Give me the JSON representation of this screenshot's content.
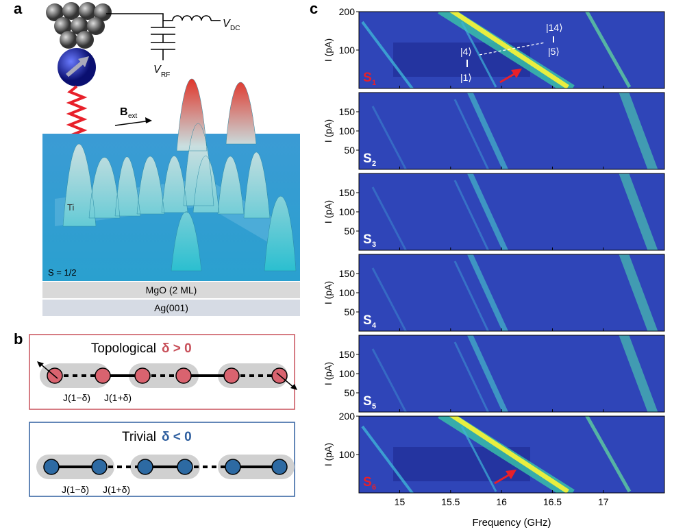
{
  "panel_a": {
    "label": "a",
    "circuit": {
      "vdc": "V",
      "vdc_sub": "DC",
      "vrf": "V",
      "vrf_sub": "RF"
    },
    "field": {
      "symbol": "B",
      "sub": "ext"
    },
    "atom": "Ti",
    "spin": "S = 1/2",
    "layers": [
      "MgO (2 ML)",
      "Ag(001)"
    ]
  },
  "panel_b": {
    "label": "b",
    "topological": {
      "title": "Topological",
      "condition": "δ > 0",
      "couplings": [
        "J(1−δ)",
        "J(1+δ)"
      ]
    },
    "trivial": {
      "title": "Trivial",
      "condition": "δ < 0",
      "couplings": [
        "J(1−δ)",
        "J(1+δ)"
      ]
    }
  },
  "panel_c": {
    "label": "c",
    "ylabel": "I (pA)",
    "xlabel": "Frequency (GHz)",
    "xlim": [
      14.6,
      17.6
    ],
    "xticks": [
      15,
      15.5,
      16,
      16.5,
      17
    ],
    "ylim": [
      0,
      200
    ],
    "states": [
      "|4⟩",
      "|1⟩",
      "|14⟩",
      "|5⟩"
    ],
    "maps": [
      {
        "name": "S",
        "sub": "1",
        "color": "#e8202a",
        "yticks": [
          100,
          200
        ]
      },
      {
        "name": "S",
        "sub": "2",
        "color": "#ffffff",
        "yticks": [
          50,
          100,
          150
        ]
      },
      {
        "name": "S",
        "sub": "3",
        "color": "#ffffff",
        "yticks": [
          50,
          100,
          150
        ]
      },
      {
        "name": "S",
        "sub": "4",
        "color": "#ffffff",
        "yticks": [
          50,
          100,
          150
        ]
      },
      {
        "name": "S",
        "sub": "5",
        "color": "#ffffff",
        "yticks": [
          50,
          100,
          150
        ]
      },
      {
        "name": "S",
        "sub": "6",
        "color": "#e8202a",
        "yticks": [
          100,
          200
        ]
      }
    ]
  }
}
